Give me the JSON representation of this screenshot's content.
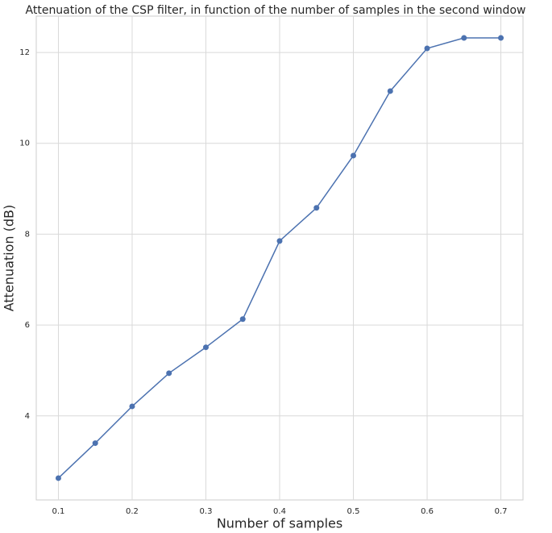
{
  "chart_data": {
    "type": "line",
    "title": "Attenuation of the CSP filter, in function of the number of samples in the second window",
    "x_label": "Number of samples",
    "y_label": "Attenuation (dB)",
    "x": [
      0.1,
      0.15,
      0.2,
      0.25,
      0.3,
      0.35,
      0.4,
      0.45,
      0.5,
      0.55,
      0.6,
      0.65,
      0.7
    ],
    "series": [
      {
        "name": "Attenuation",
        "color": "#4c72b0",
        "values": [
          2.63,
          3.4,
          4.21,
          4.94,
          5.51,
          6.13,
          7.85,
          8.58,
          9.73,
          11.15,
          12.09,
          12.32,
          12.32
        ]
      }
    ],
    "xlim": [
      0.07,
      0.73
    ],
    "xticks": [
      0.1,
      0.2,
      0.3,
      0.4,
      0.5,
      0.6,
      0.7
    ],
    "ylim": [
      2.15,
      12.8
    ],
    "yticks": [
      4,
      6,
      8,
      10,
      12
    ],
    "grid": true
  }
}
